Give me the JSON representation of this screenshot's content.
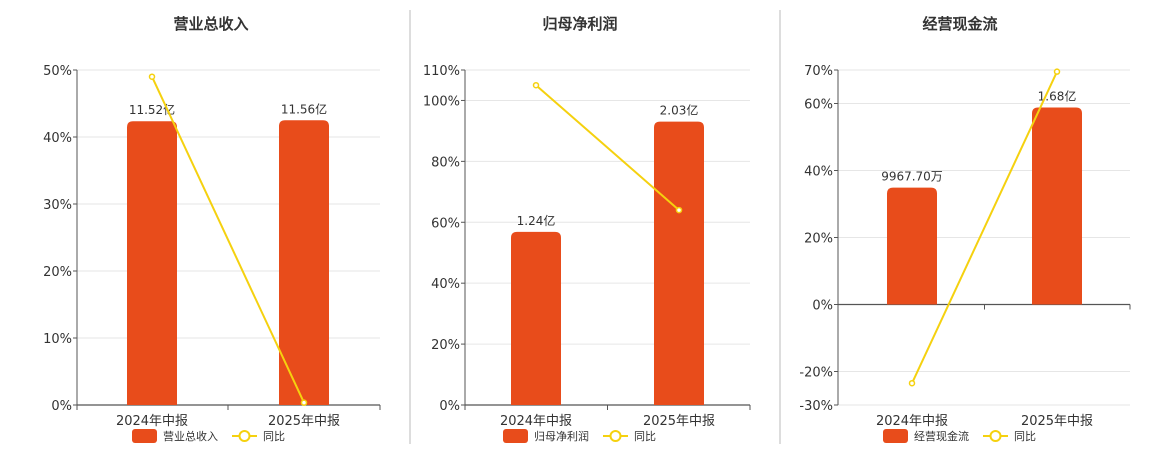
{
  "chart_data": [
    {
      "type": "bar",
      "title": "营业总收入",
      "categories": [
        "2024年中报",
        "2025年中报"
      ],
      "series": [
        {
          "name": "营业总收入",
          "type": "bar",
          "values": [
            11.52,
            11.56
          ],
          "labels": [
            "11.52亿",
            "11.56亿"
          ]
        },
        {
          "name": "同比",
          "type": "line",
          "values": [
            49.0,
            0.35
          ]
        }
      ],
      "ylim": [
        0,
        50
      ],
      "yticks": [
        0,
        10,
        20,
        30,
        40,
        50
      ],
      "ytick_labels": [
        "0%",
        "10%",
        "20%",
        "30%",
        "40%",
        "50%"
      ],
      "bar_scale_max": 13.6,
      "bar_color": "#e84c1b",
      "line_color": "#f5d10f",
      "grid": true,
      "legend": "bottom"
    },
    {
      "type": "bar",
      "title": "归母净利润",
      "categories": [
        "2024年中报",
        "2025年中报"
      ],
      "series": [
        {
          "name": "归母净利润",
          "type": "bar",
          "values": [
            1.24,
            2.03
          ],
          "labels": [
            "1.24亿",
            "2.03亿"
          ]
        },
        {
          "name": "同比",
          "type": "line",
          "values": [
            105.0,
            64.0
          ]
        }
      ],
      "ylim": [
        0,
        110
      ],
      "yticks": [
        0,
        20,
        40,
        60,
        80,
        100,
        110
      ],
      "ytick_labels": [
        "0%",
        "20%",
        "40%",
        "60%",
        "80%",
        "100%",
        "110%"
      ],
      "bar_scale_max": 2.4,
      "bar_color": "#e84c1b",
      "line_color": "#f5d10f",
      "grid": true,
      "legend": "bottom"
    },
    {
      "type": "bar",
      "title": "经营现金流",
      "categories": [
        "2024年中报",
        "2025年中报"
      ],
      "series": [
        {
          "name": "经营现金流",
          "type": "bar",
          "values": [
            0.99677,
            1.68
          ],
          "labels": [
            "9967.70万",
            "1.68亿"
          ]
        },
        {
          "name": "同比",
          "type": "line",
          "values": [
            -23.5,
            69.5
          ]
        }
      ],
      "ylim": [
        -30,
        70
      ],
      "yticks": [
        -30,
        -20,
        0,
        20,
        40,
        60,
        70
      ],
      "ytick_labels": [
        "-30%",
        "-20%",
        "0%",
        "20%",
        "40%",
        "60%",
        "70%"
      ],
      "bar_scale_max": 2.0,
      "bar_color": "#e84c1b",
      "line_color": "#f5d10f",
      "grid": true,
      "legend": "bottom"
    }
  ]
}
